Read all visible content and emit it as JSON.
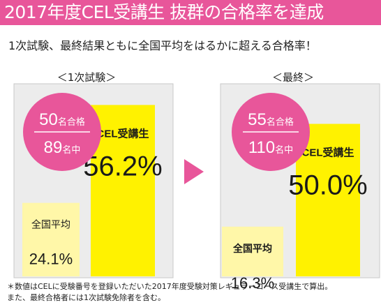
{
  "header": {
    "title": "2017年度CEL受講生 抜群の合格率を達成"
  },
  "subtitle": "1次試験、最終結果ともに全国平均をはるかに超える合格率！",
  "colors": {
    "header_bg": "#e8569a",
    "circle": "#e8569a",
    "cel_bar": "#fff200",
    "avg_bar": "#fff7a8",
    "panel_bg": "#ececec",
    "panel_border": "#c8c8c8",
    "arrow": "#e8569a"
  },
  "chart_data": [
    {
      "type": "bar",
      "panel_label": "＜1次試験＞",
      "badge": {
        "count_passed": "50",
        "passed_unit": "名合格",
        "count_total": "89",
        "total_unit": "名中"
      },
      "categories": [
        "全国平均",
        "CEL受講生"
      ],
      "values": [
        24.1,
        56.2
      ],
      "value_labels": [
        "24.1%",
        "56.2%"
      ],
      "ylim": [
        0,
        65
      ]
    },
    {
      "type": "bar",
      "panel_label": "＜最終＞",
      "badge": {
        "count_passed": "55",
        "passed_unit": "名合格",
        "count_total": "110",
        "total_unit": "名中"
      },
      "categories": [
        "全国平均",
        "CEL受講生"
      ],
      "values": [
        16.3,
        50.0
      ],
      "value_labels": [
        "16.3%",
        "50.0%"
      ],
      "ylim": [
        0,
        65
      ]
    }
  ],
  "footnote": [
    "＊数値はCELに受験番号を登録いただいた2017年度受験対策レギュラーコース受講生で算出。",
    "また、最終合格者には1次試験免除者を含む。"
  ]
}
